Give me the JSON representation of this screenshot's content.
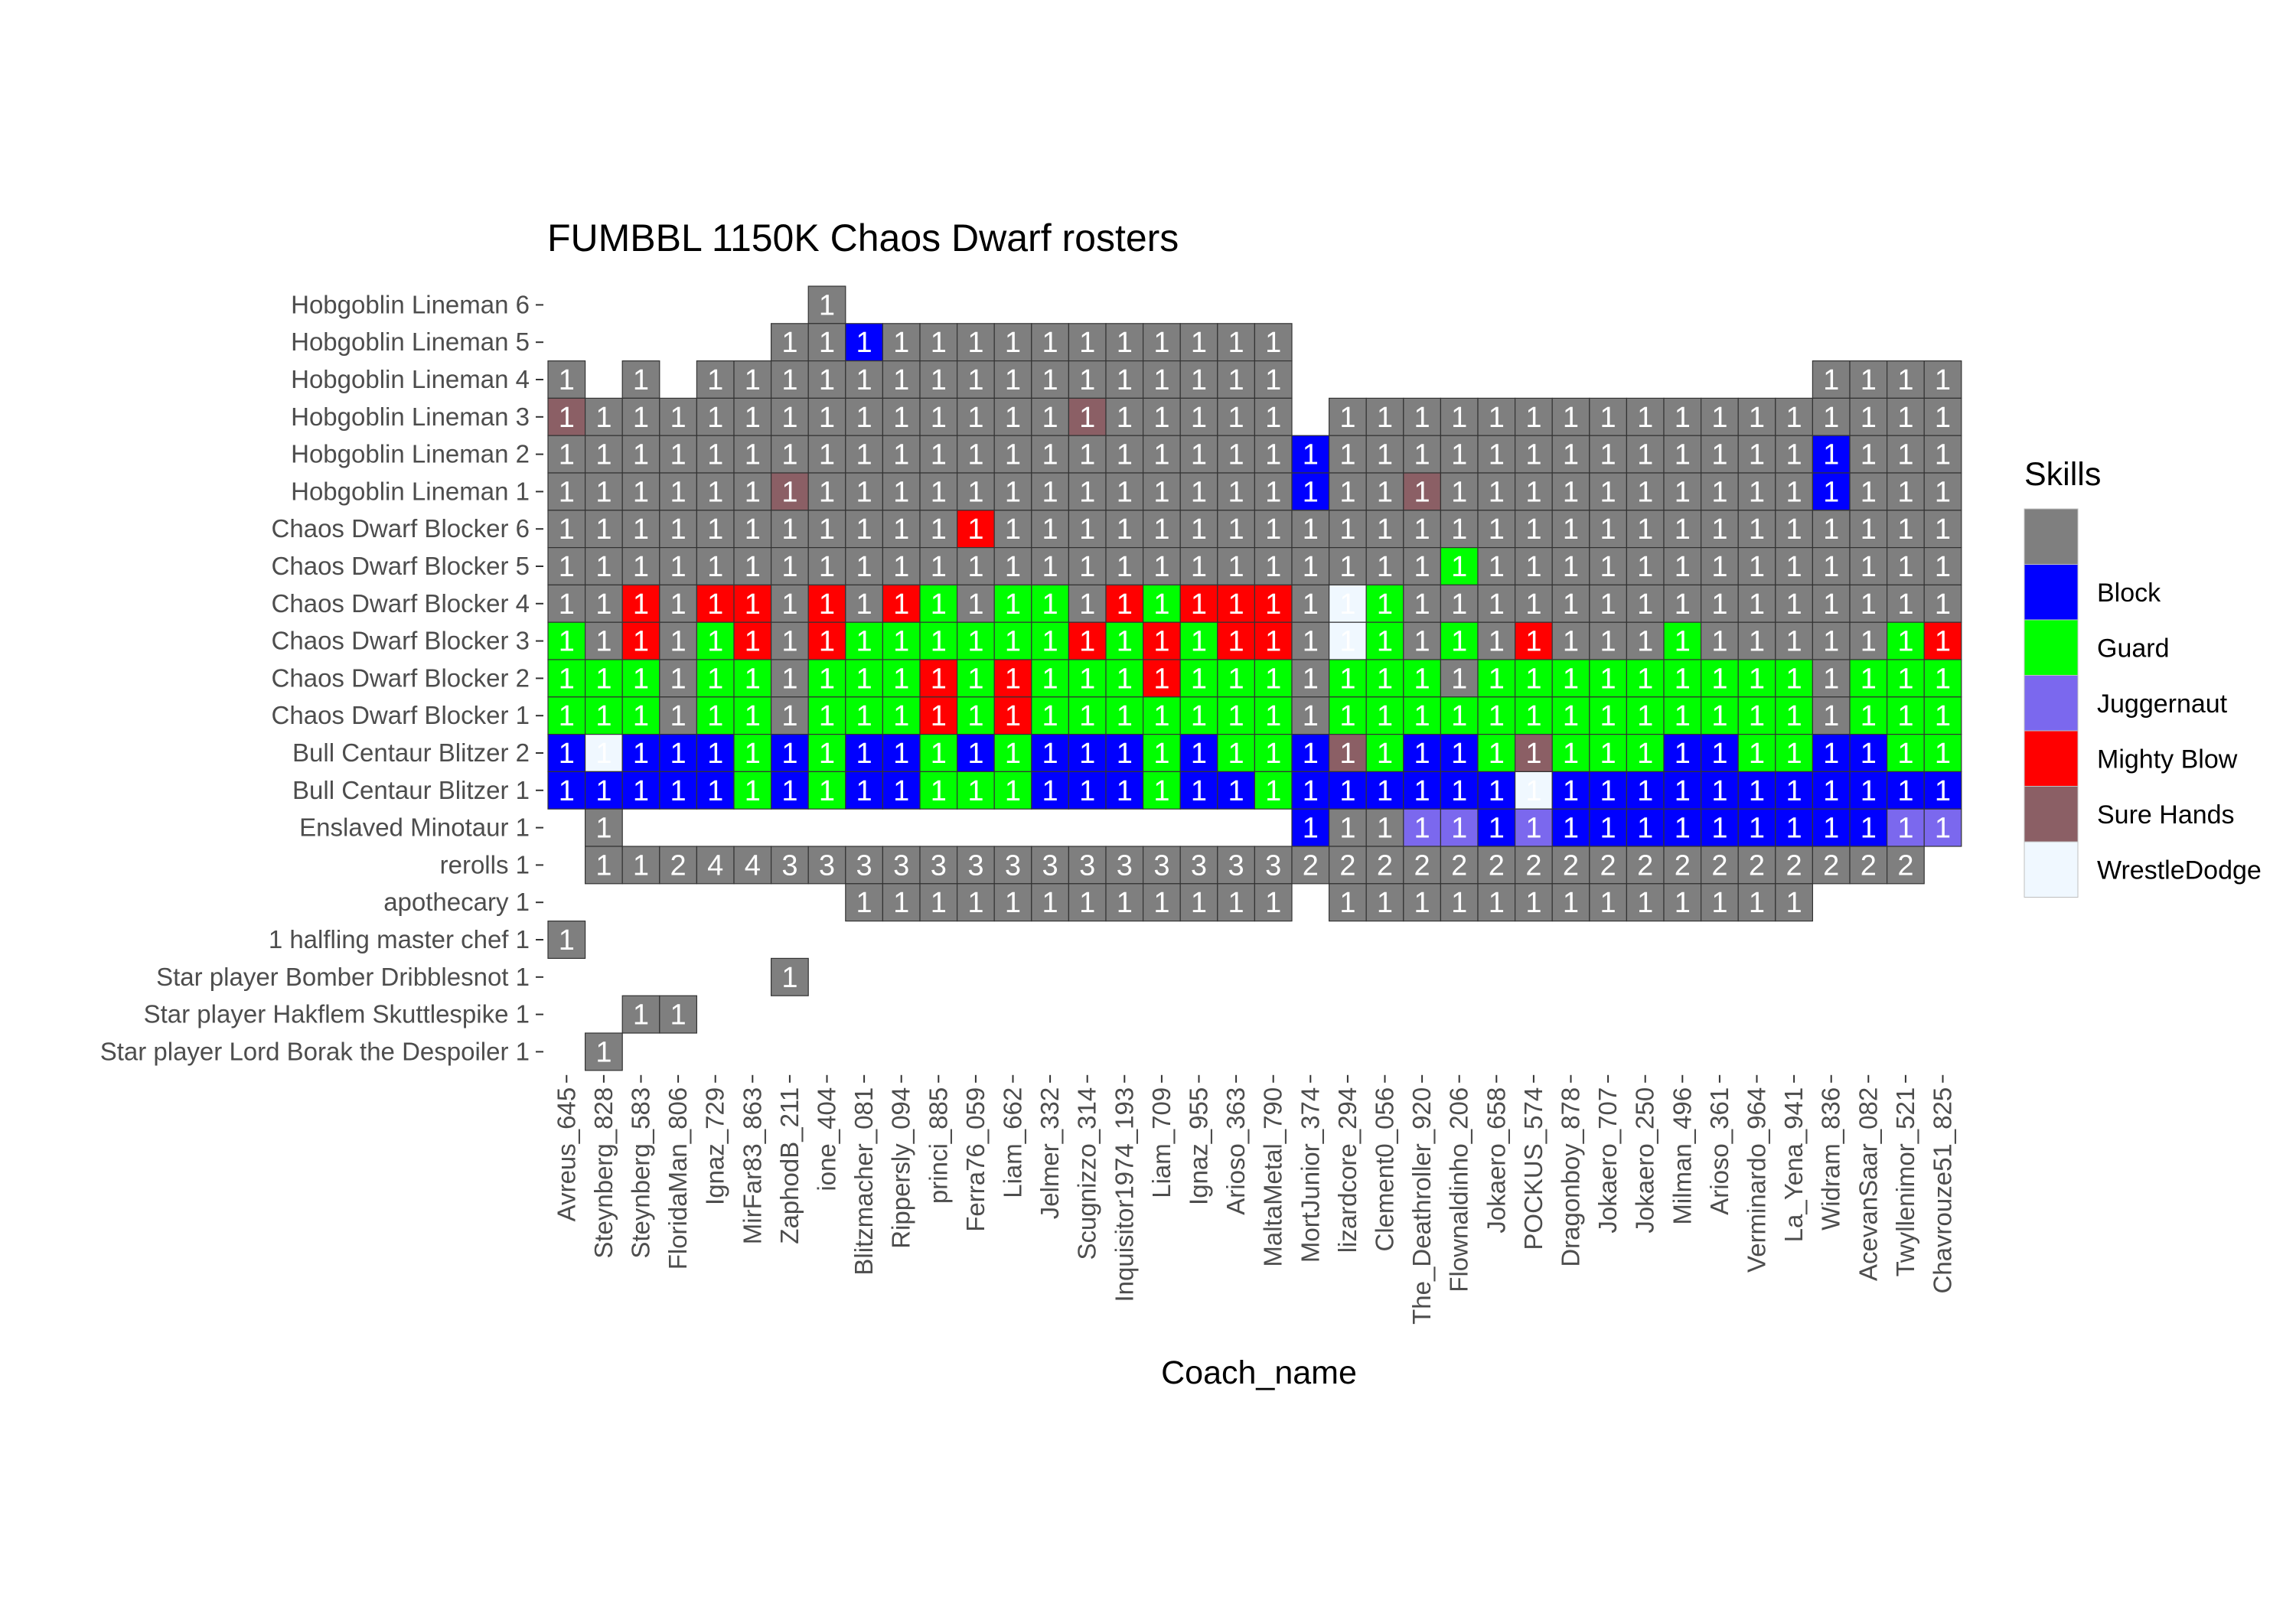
{
  "chart_data": {
    "type": "heatmap",
    "title": "FUMBBL 1150K Chaos Dwarf rosters",
    "xlabel": "Coach_name",
    "ylabel": "",
    "coaches": [
      "Avreus_645",
      "Steynberg_828",
      "Steynberg_583",
      "FloridaMan_806",
      "Ignaz_729",
      "MirFar83_863",
      "ZaphodB_211",
      "ione_404",
      "Blitzmacher_081",
      "Rippersly_094",
      "princi_885",
      "Ferra76_059",
      "Liam_662",
      "Jelmer_332",
      "Scugnizzo_314",
      "Inquisitor1974_193",
      "Liam_709",
      "Ignaz_955",
      "Arioso_363",
      "MaltaMetal_790",
      "MortJunior_374",
      "lizardcore_294",
      "Clement0_056",
      "The_Deathroller_920",
      "Flownaldinho_206",
      "Jokaero_658",
      "POCKUS_574",
      "Dragonboy_878",
      "Jokaero_707",
      "Jokaero_250",
      "Milman_496",
      "Arioso_361",
      "Verminardo_964",
      "La_Yena_941",
      "Widram_836",
      "AcevanSaar_082",
      "Twyllenimor_521",
      "Chavrouze51_825"
    ],
    "rows": [
      "Hobgoblin Lineman 6",
      "Hobgoblin Lineman 5",
      "Hobgoblin Lineman 4",
      "Hobgoblin Lineman 3",
      "Hobgoblin Lineman 2",
      "Hobgoblin Lineman 1",
      "Chaos Dwarf Blocker 6",
      "Chaos Dwarf Blocker 5",
      "Chaos Dwarf Blocker 4",
      "Chaos Dwarf Blocker 3",
      "Chaos Dwarf Blocker 2",
      "Chaos Dwarf Blocker 1",
      "Bull Centaur Blitzer 2",
      "Bull Centaur Blitzer 1",
      "Enslaved Minotaur 1",
      "rerolls 1",
      "apothecary 1",
      "1 halfling master chef 1",
      "Star player Bomber Dribblesnot 1",
      "Star player Hakflem Skuttlespike 1",
      "Star player Lord Borak the Despoiler 1"
    ],
    "legend": {
      "title": "Skills",
      "position": "right",
      "entries": [
        {
          "key": "none",
          "label": "",
          "color": "#7f7f7f"
        },
        {
          "key": "B",
          "label": "Block",
          "color": "#0000ff"
        },
        {
          "key": "G",
          "label": "Guard",
          "color": "#00ff00"
        },
        {
          "key": "J",
          "label": "Juggernaut",
          "color": "#7b68ee"
        },
        {
          "key": "M",
          "label": "Mighty Blow",
          "color": "#ff0000"
        },
        {
          "key": "S",
          "label": "Sure Hands",
          "color": "#8b5f65"
        },
        {
          "key": "W",
          "label": "WrestleDodge",
          "color": "#f0f8ff"
        }
      ]
    },
    "cells": [
      "......................................",
      "......NNNNNNNNNNNNNN..................",
      "N.N.NNNNNNNNNNNNNNNN..............NNNN",
      "SNNNNNNNNNNNNNSNNNNN.NNNNNNNNNNNNNNNNN",
      "NNNNNNNNNNNNNNNNNNNNBNNNNNNNNNNNNNBNNN",
      "NNNNNNSNNNNNNNNNNNNNBNNSNNNNNNNNNNBNNN",
      "NNNNNNNNNNNMNNNNNNNNNNNNNNNNNNNNNNNNNN",
      "NNNNNNNNNNNNNNNNNNNNNNNNGNNNNNNNNNNNNN",
      "NNMNMMNMNMGNGGNMGMMMNWGNNNNNNNNNNNNNNN",
      "GNMNGMNMGGGGGGMGMGMMNWGNGNMNNNGNNNNNGM",
      "GGGNGGNGGGMGMGGGMGGGNGGGNGGGGGGGGGNGGG",
      "GGGNGGNGGGMGMGGGGGGGNGGGGGGGGGGGGGNGGG",
      "BWBBBGBGBBGBGBBBGBGGBSGBBGSGGGBBGGBBGG",
      "BBBBBGBGBBGGGBBBGBBGBBBBBBWBBBBBBBBBBB",
      ".N..................BNNJJBJBBBBBBBBBJJ",
      ".NN2443333333333333322222222222222222",
      "........NNNNNNNNNNNN.NNNNNNNNNNNNN....",
      "N.....................................",
      "......N...............................",
      "..NN..................................",
      ".N...................................."
    ],
    "cell_notes": "Each cell is one character: '.' = no cell, N = 1 (no skill), B = Block, G = Guard, J = Juggernaut, M = Mighty Blow, S = Sure Hands, W = WrestleDodge; digits are the value of a no-skill cell.",
    "overrides": [
      {
        "row": 0,
        "col": 7,
        "value": "1",
        "skill": "none"
      },
      {
        "row": 1,
        "col": 8,
        "value": "1",
        "skill": "B"
      },
      {
        "row": 15,
        "col": 1,
        "value": "1",
        "skill": "none"
      },
      {
        "row": 15,
        "col": 2,
        "value": "1",
        "skill": "none"
      }
    ]
  }
}
